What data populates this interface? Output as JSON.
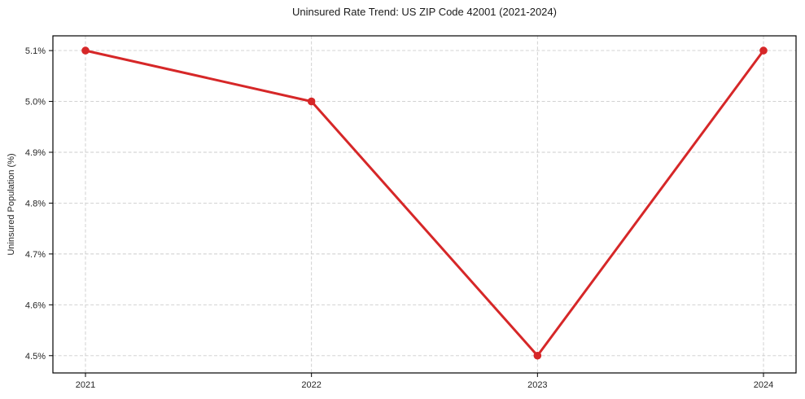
{
  "chart_data": {
    "type": "line",
    "title": "Uninsured Rate Trend: US ZIP Code 42001 (2021-2024)",
    "xlabel": "",
    "ylabel": "Uninsured Population (%)",
    "categories": [
      "2021",
      "2022",
      "2023",
      "2024"
    ],
    "values": [
      5.1,
      5.0,
      4.5,
      5.1
    ],
    "ytick_values": [
      4.5,
      4.6,
      4.7,
      4.8,
      4.9,
      5.0,
      5.1
    ],
    "ytick_labels": [
      "4.5%",
      "4.6%",
      "4.7%",
      "4.8%",
      "4.9%",
      "5.0%",
      "5.1%"
    ],
    "ylim": [
      4.466,
      5.129
    ],
    "grid": true,
    "legend": "none",
    "line_color": "#d62728",
    "marker": "circle",
    "grid_color": "#cccccc",
    "axis_color": "#000000",
    "text_color": "#262626",
    "background": "#ffffff"
  }
}
